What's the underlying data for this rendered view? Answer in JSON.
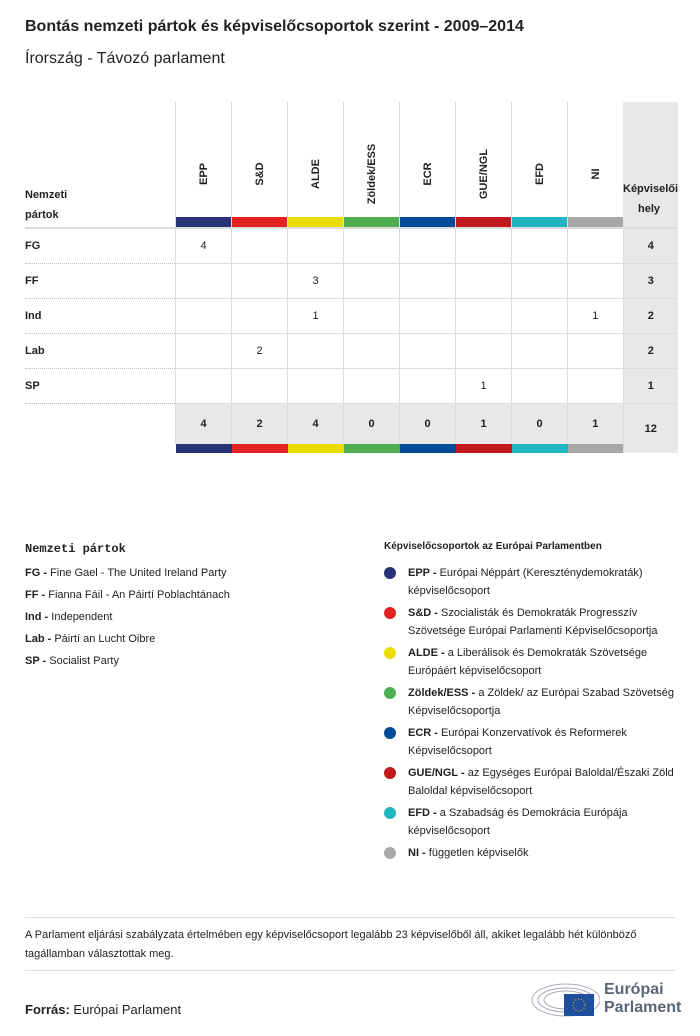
{
  "title": "Bontás nemzeti pártok és képviselőcsoportok szerint - 2009–2014",
  "subtitle": "Írország - Távozó parlament",
  "table": {
    "row_header": "Nemzeti pártok",
    "total_header": "Képviselői hely",
    "groups": [
      {
        "label": "EPP",
        "color": "#283376"
      },
      {
        "label": "S&D",
        "color": "#e32322"
      },
      {
        "label": "ALDE",
        "color": "#eadb00"
      },
      {
        "label": "Zöldek/ESS",
        "color": "#4fad52"
      },
      {
        "label": "ECR",
        "color": "#004a9a"
      },
      {
        "label": "GUE/NGL",
        "color": "#c11a1d"
      },
      {
        "label": "EFD",
        "color": "#20b6c1"
      },
      {
        "label": "NI",
        "color": "#a8a8a8"
      }
    ],
    "rows": [
      {
        "party": "FG",
        "values": [
          "4",
          "",
          "",
          "",
          "",
          "",
          "",
          ""
        ],
        "total": "4"
      },
      {
        "party": "FF",
        "values": [
          "",
          "",
          "3",
          "",
          "",
          "",
          "",
          ""
        ],
        "total": "3"
      },
      {
        "party": "Ind",
        "values": [
          "",
          "",
          "1",
          "",
          "",
          "",
          "",
          "1"
        ],
        "total": "2"
      },
      {
        "party": "Lab",
        "values": [
          "",
          "2",
          "",
          "",
          "",
          "",
          "",
          ""
        ],
        "total": "2"
      },
      {
        "party": "SP",
        "values": [
          "",
          "",
          "",
          "",
          "",
          "1",
          "",
          ""
        ],
        "total": "1"
      }
    ],
    "totals": [
      "4",
      "2",
      "4",
      "0",
      "0",
      "1",
      "0",
      "1"
    ],
    "grand_total": "12"
  },
  "legend_parties": {
    "title": "Nemzeti pártok",
    "items": [
      {
        "abbr": "FG -",
        "name": "Fine Gael - The United Ireland Party"
      },
      {
        "abbr": "FF -",
        "name": "Fianna Fáil - An Páirtí Poblachtánach"
      },
      {
        "abbr": "Ind -",
        "name": "Independent"
      },
      {
        "abbr": "Lab -",
        "name": "Páirtí an Lucht Oibre"
      },
      {
        "abbr": "SP -",
        "name": "Socialist Party"
      }
    ]
  },
  "legend_groups": {
    "title": "Képviselőcsoportok az Európai Parlamentben",
    "items": [
      {
        "abbr": "EPP -",
        "name": "Európai Néppárt (Kereszténydemokraták) képviselőcsoport",
        "color": "#283376"
      },
      {
        "abbr": "S&D -",
        "name": "Szocialisták és Demokraták Progresszív Szövetsége Európai Parlamenti Képviselőcsoportja",
        "color": "#e32322"
      },
      {
        "abbr": "ALDE -",
        "name": "a Liberálisok és Demokraták Szövetsége Európáért képviselőcsoport",
        "color": "#eadb00"
      },
      {
        "abbr": "Zöldek/ESS -",
        "name": "a Zöldek/ az Európai Szabad Szövetség Képviselőcsoportja",
        "color": "#4fad52"
      },
      {
        "abbr": "ECR -",
        "name": "Európai Konzervatívok és Reformerek Képviselőcsoport",
        "color": "#004a9a"
      },
      {
        "abbr": "GUE/NGL -",
        "name": "az Egységes Európai Baloldal/Északi Zöld Baloldal képviselőcsoport",
        "color": "#c11a1d"
      },
      {
        "abbr": "EFD -",
        "name": "a Szabadság és Demokrácia Európája képviselőcsoport",
        "color": "#20b6c1"
      },
      {
        "abbr": "NI -",
        "name": "független képviselők",
        "color": "#a8a8a8"
      }
    ]
  },
  "note": "A Parlament eljárási szabályzata értelmében egy képviselőcsoport legalább 23 képviselőből áll, akiket legalább hét különböző tagállamban választottak meg.",
  "source_label": "Forrás:",
  "source": "Európai Parlament",
  "logo": {
    "line1": "Európai",
    "line2": "Parlament"
  }
}
